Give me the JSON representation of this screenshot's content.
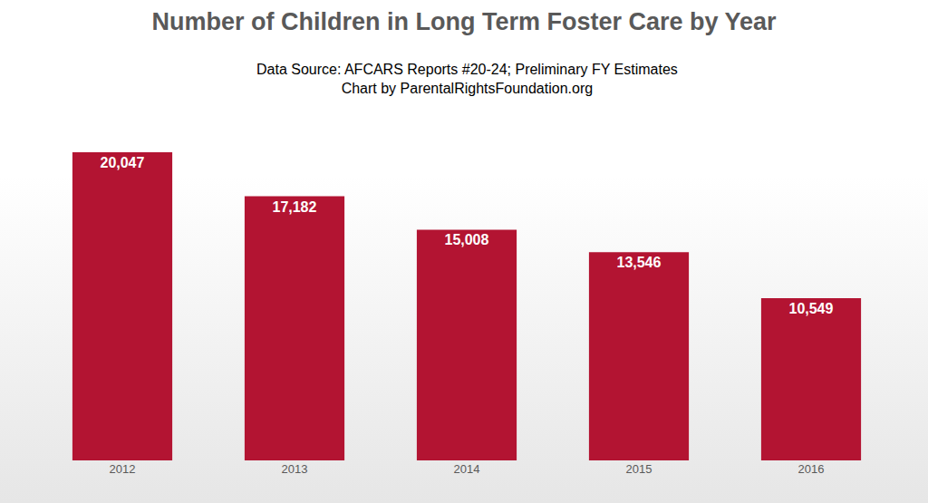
{
  "chart_data": {
    "type": "bar",
    "title": "Number of Children in Long Term Foster Care by Year",
    "subtitle": [
      "Data Source: AFCARS Reports #20-24; Preliminary FY Estimates",
      "Chart by ParentalRightsFoundation.org"
    ],
    "categories": [
      "2012",
      "2013",
      "2014",
      "2015",
      "2016"
    ],
    "values": [
      20047,
      17182,
      15008,
      13546,
      10549
    ],
    "value_labels": [
      "20,047",
      "17,182",
      "15,008",
      "13,546",
      "10,549"
    ],
    "color": "#b31432",
    "data_labels": true,
    "grid": false,
    "tick_labels": "x"
  }
}
